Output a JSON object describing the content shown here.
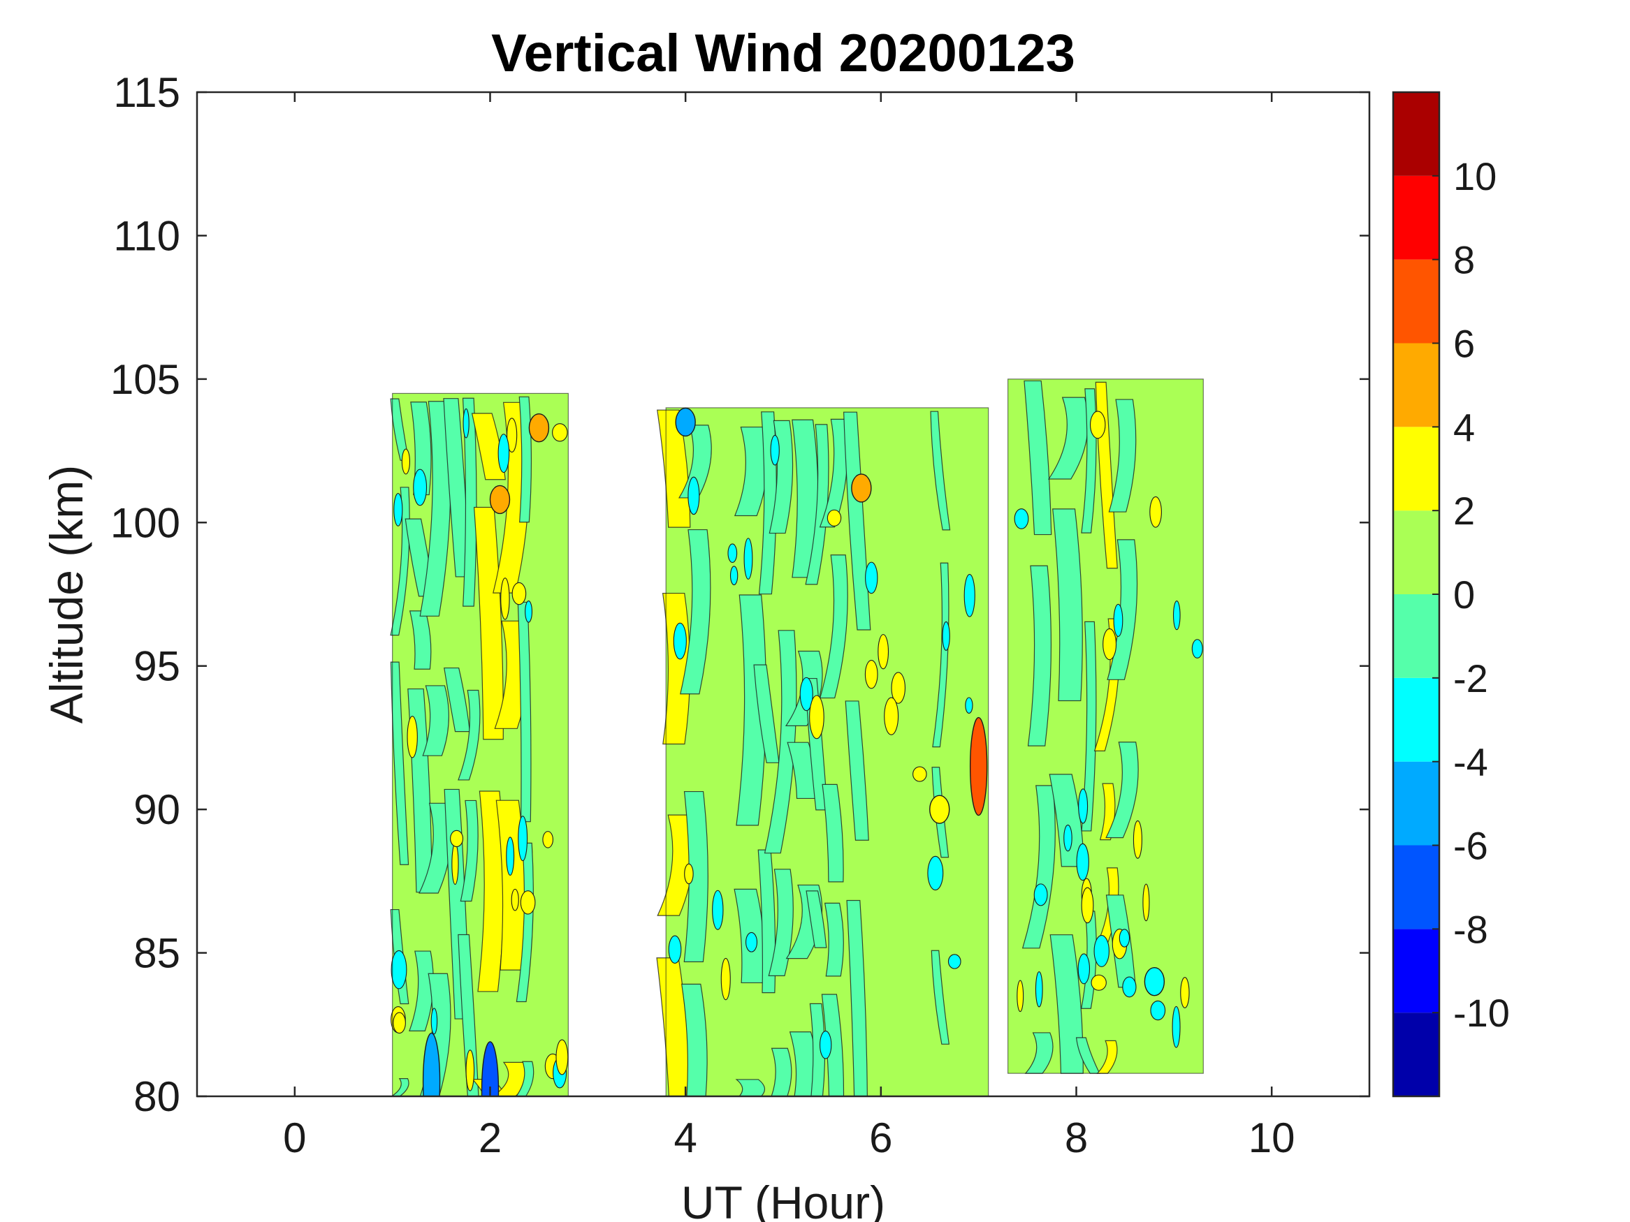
{
  "chart_data": {
    "type": "heatmap",
    "subtype": "filled-contour",
    "title": "Vertical Wind 20200123",
    "xlabel": "UT (Hour)",
    "ylabel": "Altitude (km)",
    "xlim": [
      -1,
      11
    ],
    "ylim": [
      80,
      115
    ],
    "xticks": [
      0,
      2,
      4,
      6,
      8,
      10
    ],
    "yticks": [
      80,
      85,
      90,
      95,
      100,
      105,
      110,
      115
    ],
    "xtick_labels": [
      "0",
      "2",
      "4",
      "6",
      "8",
      "10"
    ],
    "ytick_labels": [
      "80",
      "85",
      "90",
      "95",
      "100",
      "105",
      "110",
      "115"
    ],
    "grid": false,
    "colorbar": {
      "range": [
        -12,
        12
      ],
      "levels": [
        -12,
        -10,
        -8,
        -6,
        -4,
        -2,
        0,
        2,
        4,
        6,
        8,
        10,
        12
      ],
      "ticks": [
        -10,
        -8,
        -6,
        -4,
        -2,
        0,
        2,
        4,
        6,
        8,
        10
      ],
      "tick_labels": [
        "-10",
        "-8",
        "-6",
        "-4",
        "-2",
        "0",
        "2",
        "4",
        "6",
        "8",
        "10"
      ],
      "colors": [
        "#0000aa",
        "#0000ff",
        "#0055ff",
        "#00aaff",
        "#00ffff",
        "#55ffaa",
        "#aaff55",
        "#ffff00",
        "#ffaa00",
        "#ff5500",
        "#ff0000",
        "#aa0000"
      ]
    },
    "data_segments": [
      {
        "name": "segment-1",
        "ut_range": [
          1.0,
          2.8
        ],
        "alt_bottom": 80.0,
        "alt_top": 104.5
      },
      {
        "name": "segment-2",
        "ut_range": [
          3.8,
          7.1
        ],
        "alt_bottom": 80.0,
        "alt_top": 104.0
      },
      {
        "name": "segment-3",
        "ut_range": [
          7.3,
          9.3
        ],
        "alt_bottom": 80.8,
        "alt_top": 105.0
      }
    ],
    "features": [
      {
        "ut": 2.5,
        "alt": 103.3,
        "value": 5
      },
      {
        "ut": 2.1,
        "alt": 100.8,
        "value": 5
      },
      {
        "ut": 5.8,
        "alt": 101.2,
        "value": 5
      },
      {
        "ut": 7.0,
        "alt": 91.5,
        "value": 7
      },
      {
        "ut": 6.6,
        "alt": 90.0,
        "value": 3
      },
      {
        "ut": 4.0,
        "alt": 103.5,
        "value": -5
      },
      {
        "ut": 8.8,
        "alt": 84.0,
        "value": -4
      },
      {
        "ut": 1.4,
        "alt": 80.5,
        "value": -6
      },
      {
        "ut": 2.0,
        "alt": 80.2,
        "value": -7
      }
    ]
  }
}
